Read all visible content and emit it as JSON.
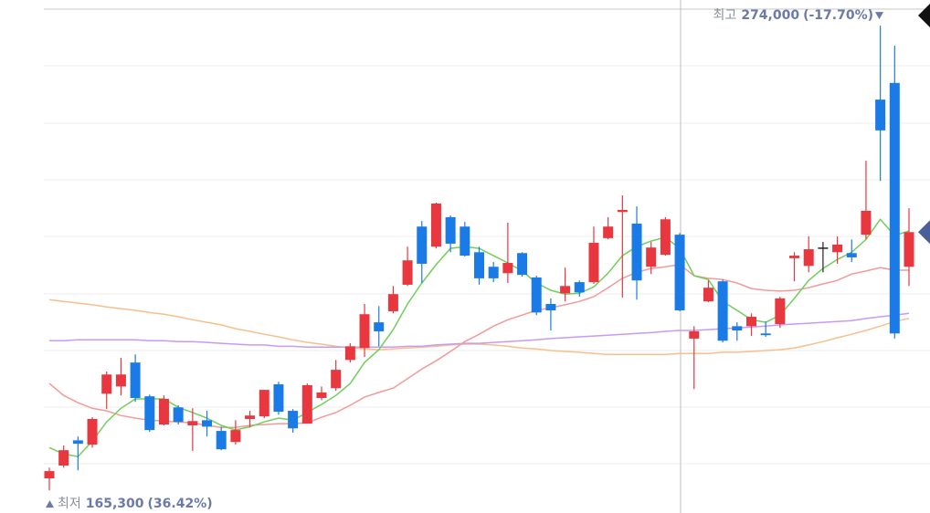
{
  "chart_data": {
    "type": "candlestick",
    "ylim": [
      160000,
      280000
    ],
    "up_color": "#e8373e",
    "down_color": "#1a7be6",
    "flat_color": "#222222",
    "open": [
      168100,
      171100,
      177000,
      176000,
      187900,
      189600,
      195200,
      187300,
      180700,
      184700,
      180500,
      181700,
      179200,
      176600,
      182000,
      182600,
      190100,
      183900,
      180900,
      186900,
      189200,
      195800,
      198600,
      204600,
      207200,
      213400,
      227000,
      222300,
      229200,
      227000,
      221000,
      217600,
      216100,
      220800,
      215100,
      208900,
      211400,
      214000,
      214000,
      224300,
      230400,
      227700,
      217600,
      220400,
      225100,
      200800,
      209500,
      214200,
      203700,
      203700,
      202000,
      204200,
      219600,
      217800,
      222100,
      221000,
      220800,
      225100,
      256700,
      260600,
      217600
    ],
    "high": [
      170600,
      175800,
      177900,
      182400,
      193100,
      196300,
      197100,
      187700,
      187500,
      185200,
      184500,
      183900,
      180200,
      181700,
      183900,
      188800,
      190700,
      184300,
      190300,
      189600,
      195800,
      199700,
      208900,
      208400,
      213100,
      222300,
      228300,
      232600,
      229600,
      228100,
      222300,
      218700,
      227900,
      221000,
      215500,
      210200,
      217400,
      214400,
      227000,
      229200,
      234300,
      231700,
      223400,
      229200,
      225500,
      203700,
      214400,
      214600,
      204600,
      206700,
      204800,
      210600,
      221000,
      224700,
      223400,
      224700,
      224000,
      242400,
      274000,
      269300,
      231300
    ],
    "low": [
      165300,
      170600,
      170000,
      175300,
      184300,
      187500,
      186000,
      179000,
      180500,
      180700,
      174500,
      177900,
      174700,
      176000,
      180000,
      182200,
      183000,
      178800,
      180900,
      186400,
      188600,
      195200,
      196500,
      199000,
      206700,
      213100,
      213800,
      221900,
      221000,
      220000,
      213400,
      214000,
      213800,
      215300,
      206300,
      202700,
      209500,
      210600,
      213600,
      224000,
      210400,
      209900,
      215900,
      220200,
      207200,
      189000,
      209300,
      199900,
      200300,
      201400,
      201200,
      203300,
      214200,
      216300,
      216300,
      218300,
      218700,
      224000,
      237700,
      200800,
      213100
    ],
    "close": [
      169800,
      174700,
      176200,
      182000,
      192400,
      192400,
      186900,
      179400,
      186700,
      181300,
      181500,
      180200,
      174900,
      179400,
      182800,
      188800,
      183700,
      179800,
      189900,
      188200,
      193500,
      199000,
      206500,
      202500,
      211200,
      219100,
      218300,
      232400,
      223000,
      220200,
      214900,
      214900,
      218500,
      215700,
      206900,
      207400,
      213100,
      211600,
      223200,
      227000,
      230900,
      214400,
      222100,
      228700,
      207400,
      202500,
      212700,
      200300,
      202700,
      205900,
      201600,
      210200,
      220200,
      221700,
      222100,
      222800,
      219800,
      230700,
      249500,
      202000,
      225700
    ],
    "moving_averages": [
      {
        "color": "#f7bf8c",
        "values": [
          209900,
          209500,
          209100,
          208700,
          208200,
          207800,
          207400,
          206900,
          206500,
          205900,
          205200,
          204600,
          204000,
          203100,
          202500,
          201800,
          201200,
          200500,
          199900,
          199500,
          199000,
          198600,
          198400,
          198200,
          198400,
          198600,
          198800,
          199000,
          199300,
          199500,
          199500,
          199300,
          199000,
          198600,
          198400,
          198000,
          197800,
          197600,
          197300,
          197100,
          197100,
          197100,
          197100,
          197100,
          197300,
          197300,
          197300,
          197600,
          197600,
          197800,
          198000,
          198200,
          198600,
          199300,
          200100,
          201000,
          201800,
          202700,
          203700,
          204800,
          205500
        ]
      },
      {
        "color": "#c79af5",
        "values": [
          200300,
          200300,
          200500,
          200500,
          200500,
          200500,
          200500,
          200300,
          200300,
          200100,
          200100,
          199900,
          199700,
          199500,
          199300,
          199300,
          199000,
          199000,
          198800,
          198800,
          198800,
          198800,
          198800,
          198800,
          198800,
          199000,
          199000,
          199300,
          199500,
          199700,
          199700,
          199900,
          200100,
          200300,
          200500,
          200800,
          201000,
          201200,
          201400,
          201600,
          201800,
          202000,
          202200,
          202500,
          202700,
          202700,
          202900,
          203100,
          203300,
          203500,
          203700,
          204000,
          204200,
          204400,
          204600,
          204800,
          205000,
          205500,
          205900,
          206300,
          206700
        ]
      },
      {
        "color": "#f39a9a",
        "values": [
          190300,
          187500,
          185800,
          184500,
          183900,
          182800,
          182200,
          181700,
          181500,
          181300,
          181100,
          180500,
          180000,
          180000,
          180500,
          180700,
          180900,
          180900,
          181100,
          182400,
          183500,
          185200,
          187100,
          188200,
          189200,
          191400,
          193700,
          195600,
          197800,
          200100,
          201800,
          203700,
          205200,
          206300,
          207400,
          208000,
          208700,
          209500,
          210600,
          212700,
          214900,
          216300,
          217200,
          217600,
          218100,
          215500,
          214900,
          214600,
          213800,
          212500,
          212100,
          211900,
          212100,
          212700,
          213600,
          214400,
          215900,
          216600,
          217400,
          216800,
          216800
        ]
      },
      {
        "color": "#6fcf5a",
        "values": [
          175300,
          173800,
          173200,
          176800,
          181300,
          184500,
          186700,
          186700,
          186700,
          184700,
          183500,
          182200,
          180500,
          179400,
          180200,
          181300,
          182200,
          181700,
          183500,
          185400,
          187500,
          190300,
          195200,
          198200,
          202900,
          208900,
          213800,
          218100,
          221900,
          222300,
          221900,
          220200,
          218500,
          216600,
          213800,
          212100,
          211200,
          211400,
          212900,
          216100,
          220200,
          222300,
          223600,
          224500,
          221900,
          215500,
          214600,
          209500,
          207400,
          205200,
          204600,
          206300,
          210200,
          214400,
          217200,
          219300,
          221000,
          224000,
          228700,
          224900,
          226000
        ]
      }
    ],
    "annotations": {
      "high": {
        "label": "최고",
        "value": {
          "value": 274000,
          "label": "274,000"
        },
        "change": "(-17.70%)"
      },
      "low": {
        "label": "최저",
        "value": {
          "value": 165300,
          "label": "165,300"
        },
        "change": "(36.42%)"
      }
    }
  }
}
